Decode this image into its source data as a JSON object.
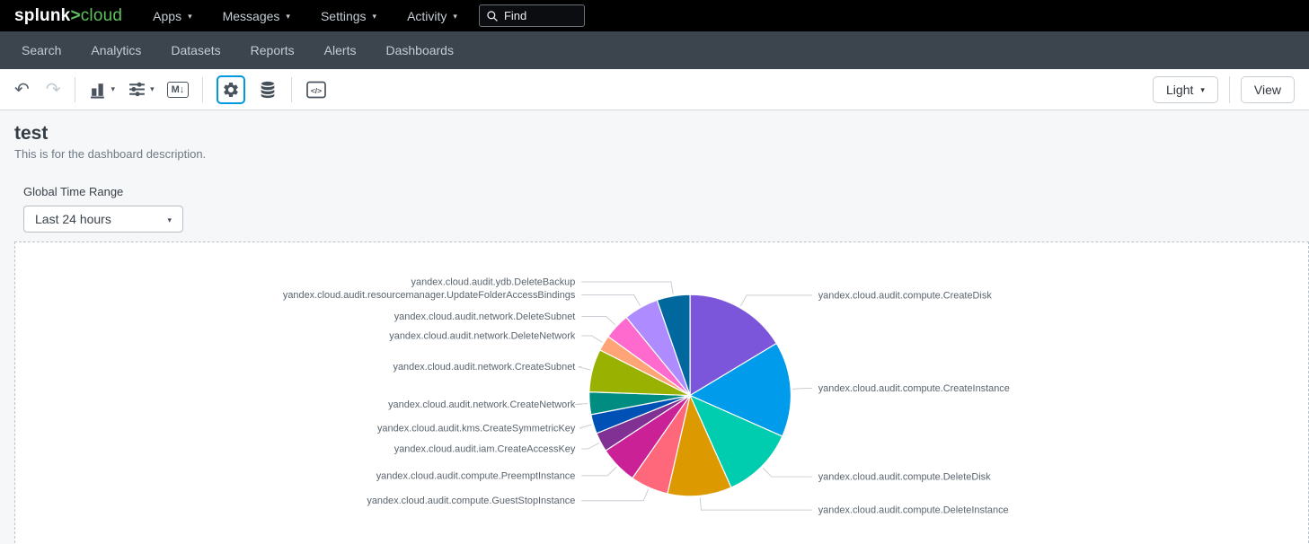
{
  "topbar": {
    "logo": {
      "splunk": "splunk",
      "gt": ">",
      "cloud": "cloud"
    },
    "menus": [
      {
        "label": "Apps"
      },
      {
        "label": "Messages"
      },
      {
        "label": "Settings"
      },
      {
        "label": "Activity"
      }
    ],
    "find_placeholder": "Find"
  },
  "navbar": {
    "items": [
      "Search",
      "Analytics",
      "Datasets",
      "Reports",
      "Alerts",
      "Dashboards"
    ]
  },
  "toolbar": {
    "markdown_label": "M↓",
    "code_label": "</>",
    "light_label": "Light",
    "view_label": "View",
    "icons": [
      "undo-icon",
      "redo-icon",
      "bar-chart-icon",
      "sliders-icon",
      "markdown-icon",
      "gear-icon",
      "database-icon",
      "source-code-icon"
    ]
  },
  "dashboard": {
    "title": "test",
    "description": "This is for the dashboard description.",
    "time_range_label": "Global Time Range",
    "time_range_value": "Last 24 hours"
  },
  "colors": {
    "brand_green": "#5CC05C",
    "active_outline_blue": "#0098E0",
    "topbar_bg": "#000000",
    "navbar_bg": "#3C444D",
    "panel_dash_border": "#B9C3CC"
  },
  "chart_data": {
    "type": "pie",
    "title": "",
    "legend_position": "callout-labels",
    "series": [
      {
        "label": "yandex.cloud.audit.compute.CreateDisk",
        "value_pct": 16.4,
        "color": "#7B56DB"
      },
      {
        "label": "yandex.cloud.audit.compute.CreateInstance",
        "value_pct": 15.3,
        "color": "#009CEB"
      },
      {
        "label": "yandex.cloud.audit.compute.DeleteDisk",
        "value_pct": 11.7,
        "color": "#00CDAF"
      },
      {
        "label": "yandex.cloud.audit.compute.DeleteInstance",
        "value_pct": 10.3,
        "color": "#DD9900"
      },
      {
        "label": "yandex.cloud.audit.compute.GuestStopInstance",
        "value_pct": 6.1,
        "color": "#FF677B"
      },
      {
        "label": "yandex.cloud.audit.compute.PreemptInstance",
        "value_pct": 6.1,
        "color": "#CB2196"
      },
      {
        "label": "yandex.cloud.audit.iam.CreateAccessKey",
        "value_pct": 3.1,
        "color": "#813193"
      },
      {
        "label": "yandex.cloud.audit.kms.CreateSymmetricKey",
        "value_pct": 3.1,
        "color": "#0051B5"
      },
      {
        "label": "yandex.cloud.audit.network.CreateNetwork",
        "value_pct": 3.6,
        "color": "#008C80"
      },
      {
        "label": "yandex.cloud.audit.network.CreateSubnet",
        "value_pct": 6.9,
        "color": "#99B100"
      },
      {
        "label": "yandex.cloud.audit.network.DeleteNetwork",
        "value_pct": 2.5,
        "color": "#FFA476"
      },
      {
        "label": "yandex.cloud.audit.network.DeleteSubnet",
        "value_pct": 4.2,
        "color": "#FF6ACE"
      },
      {
        "label": "yandex.cloud.audit.resourcemanager.UpdateFolderAccessBindings",
        "value_pct": 5.6,
        "color": "#AE8CFF"
      },
      {
        "label": "yandex.cloud.audit.ydb.DeleteBackup",
        "value_pct": 5.3,
        "color": "#00689D"
      }
    ]
  }
}
